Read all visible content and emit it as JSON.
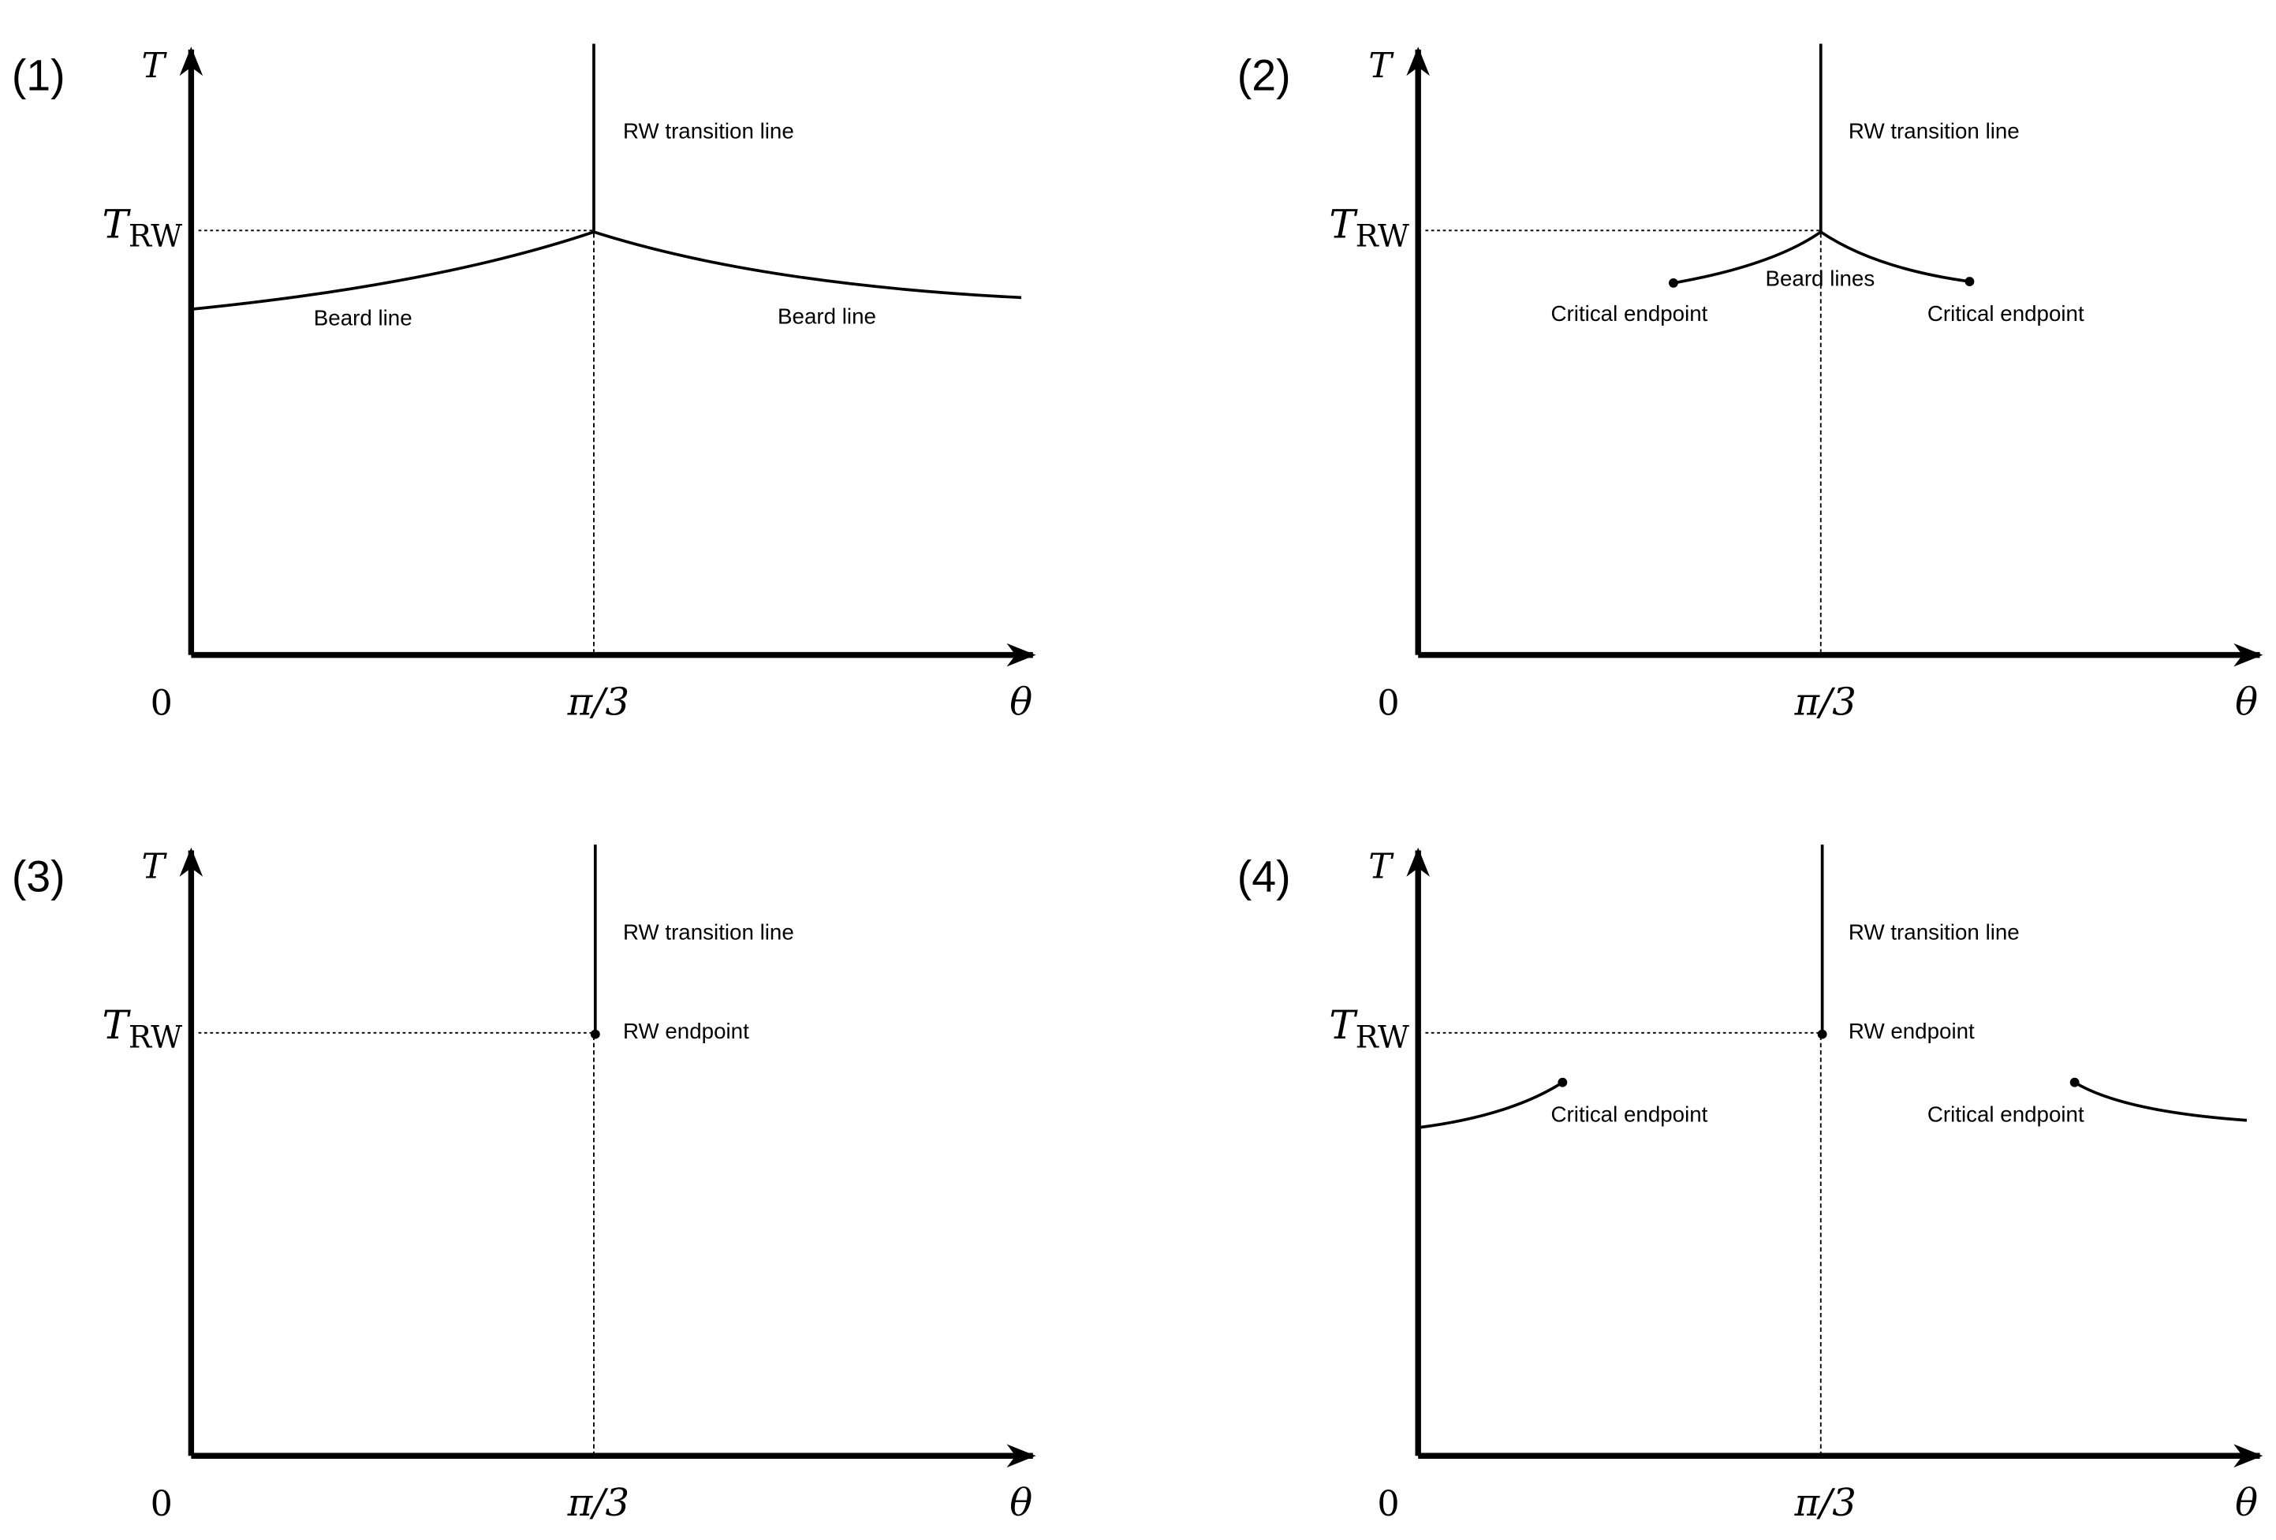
{
  "colors": {
    "ink": "#000000",
    "background": "#ffffff"
  },
  "panels": [
    {
      "label": "(1)",
      "y_axis_label": "T",
      "t_rw_base": "T",
      "t_rw_sub": "RW",
      "origin_label": "0",
      "pi3_label": "π/3",
      "x_axis_label": "θ",
      "transition_label": "RW transition line",
      "beard_left_label": "Beard line",
      "beard_right_label": "Beard line"
    },
    {
      "label": "(2)",
      "y_axis_label": "T",
      "t_rw_base": "T",
      "t_rw_sub": "RW",
      "origin_label": "0",
      "pi3_label": "π/3",
      "x_axis_label": "θ",
      "transition_label": "RW transition line",
      "beard_lines_label": "Beard lines",
      "critical_left_label": "Critical endpoint",
      "critical_right_label": "Critical endpoint"
    },
    {
      "label": "(3)",
      "y_axis_label": "T",
      "t_rw_base": "T",
      "t_rw_sub": "RW",
      "origin_label": "0",
      "pi3_label": "π/3",
      "x_axis_label": "θ",
      "transition_label": "RW transition line",
      "endpoint_label": "RW endpoint"
    },
    {
      "label": "(4)",
      "y_axis_label": "T",
      "t_rw_base": "T",
      "t_rw_sub": "RW",
      "origin_label": "0",
      "pi3_label": "π/3",
      "x_axis_label": "θ",
      "transition_label": "RW transition line",
      "endpoint_label": "RW endpoint",
      "critical_left_label": "Critical endpoint",
      "critical_right_label": "Critical endpoint"
    }
  ]
}
